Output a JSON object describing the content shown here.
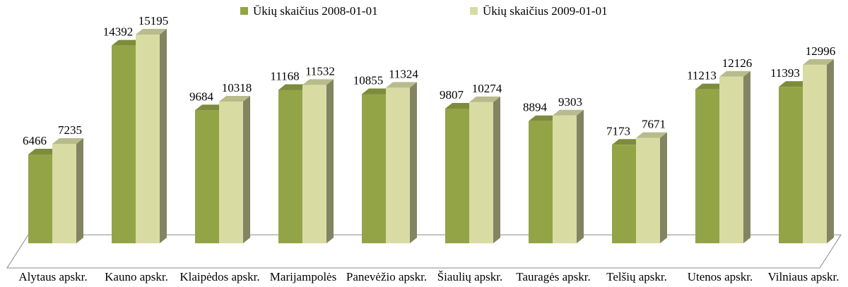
{
  "chart_data": {
    "type": "bar3d",
    "categories": [
      "Alytaus apskr.",
      "Kauno apskr.",
      "Klaipėdos apskr.",
      "Marijampolės apskr.",
      "Panevėžio apskr.",
      "Šiaulių apskr.",
      "Tauragės apskr.",
      "Telšių apskr.",
      "Utenos apskr.",
      "Vilniaus apskr."
    ],
    "series": [
      {
        "name": "Ūkių skaičius 2008-01-01",
        "color": "#93a447",
        "values": [
          6466,
          14392,
          9684,
          11168,
          10855,
          9807,
          8894,
          7173,
          11213,
          11393
        ]
      },
      {
        "name": "Ūkių skaičius 2009-01-01",
        "color": "#d8dca3",
        "values": [
          7235,
          15195,
          10318,
          11532,
          11324,
          10274,
          9303,
          7671,
          12126,
          12996
        ]
      }
    ],
    "legend": "top"
  }
}
